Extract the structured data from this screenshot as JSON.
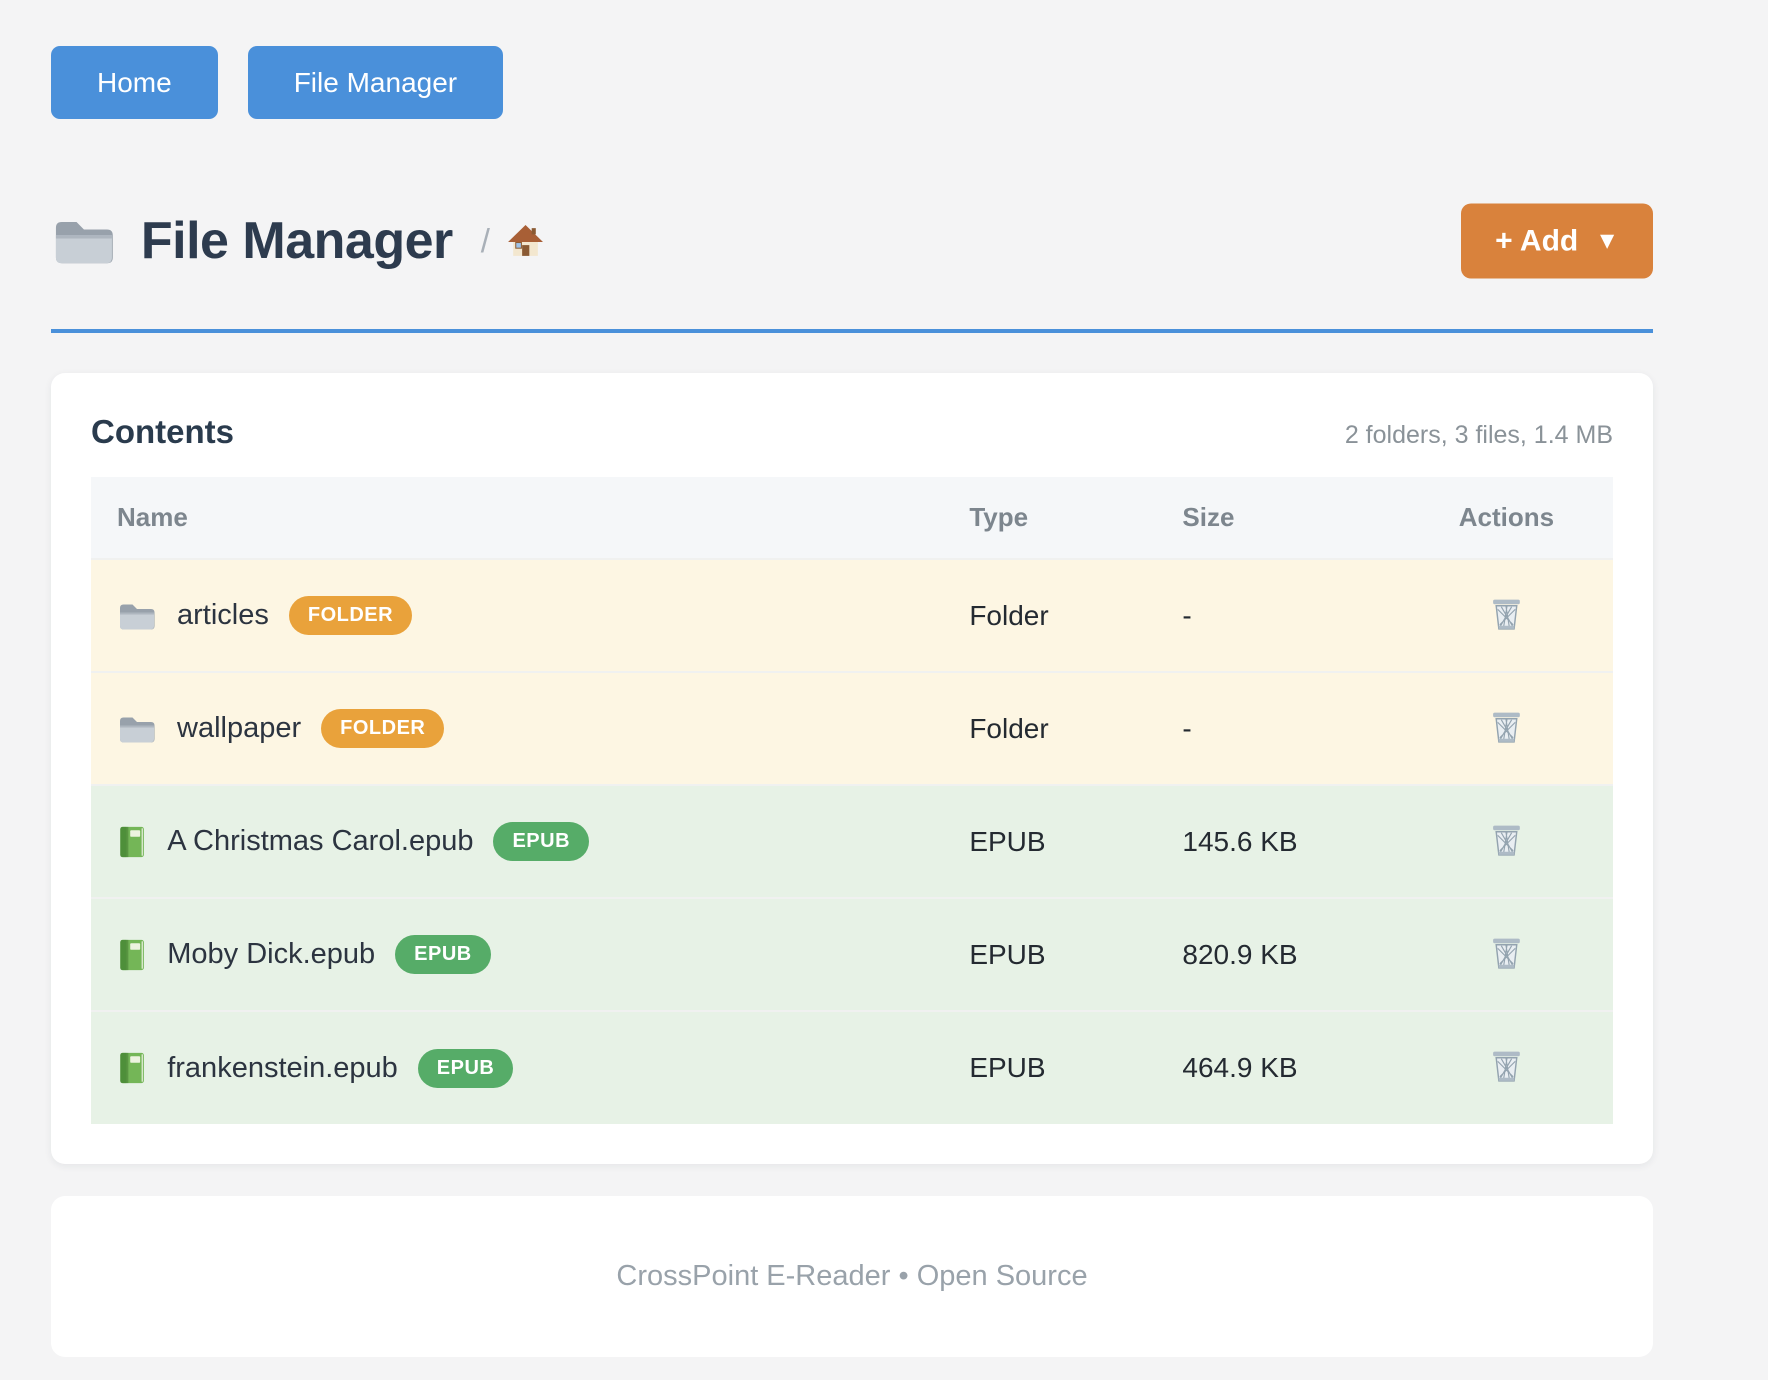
{
  "nav": {
    "buttons": [
      {
        "label": "Home"
      },
      {
        "label": "File Manager"
      }
    ]
  },
  "header": {
    "title_icon": "folder-icon",
    "title": "File Manager",
    "breadcrumb_separator": "/",
    "breadcrumb_home_icon": "house-icon",
    "add_button_label": "+ Add",
    "add_button_caret": "▼"
  },
  "contents_card": {
    "title": "Contents",
    "summary": "2 folders, 3 files, 1.4 MB",
    "columns": [
      "Name",
      "Type",
      "Size",
      "Actions"
    ],
    "rows": [
      {
        "icon": "folder-icon",
        "name": "articles",
        "badge": "FOLDER",
        "kind": "folder",
        "type": "Folder",
        "size": "-",
        "action_icon": "trash-icon"
      },
      {
        "icon": "folder-icon",
        "name": "wallpaper",
        "badge": "FOLDER",
        "kind": "folder",
        "type": "Folder",
        "size": "-",
        "action_icon": "trash-icon"
      },
      {
        "icon": "green-book-icon",
        "name": "A Christmas Carol.epub",
        "badge": "EPUB",
        "kind": "epub",
        "type": "EPUB",
        "size": "145.6 KB",
        "action_icon": "trash-icon"
      },
      {
        "icon": "green-book-icon",
        "name": "Moby Dick.epub",
        "badge": "EPUB",
        "kind": "epub",
        "type": "EPUB",
        "size": "820.9 KB",
        "action_icon": "trash-icon"
      },
      {
        "icon": "green-book-icon",
        "name": "frankenstein.epub",
        "badge": "EPUB",
        "kind": "epub",
        "type": "EPUB",
        "size": "464.9 KB",
        "action_icon": "trash-icon"
      }
    ]
  },
  "footer": {
    "text": "CrossPoint E-Reader • Open Source"
  },
  "colors": {
    "page_bg": "#f4f4f5",
    "accent_blue": "#4a90da",
    "accent_orange": "#d9823c",
    "badge_folder_bg": "#e9a23b",
    "badge_epub_bg": "#56ac68",
    "folder_row_bg": "#fdf6e3",
    "epub_row_bg": "#e7f2e6",
    "table_head_bg": "#f5f7f9"
  }
}
